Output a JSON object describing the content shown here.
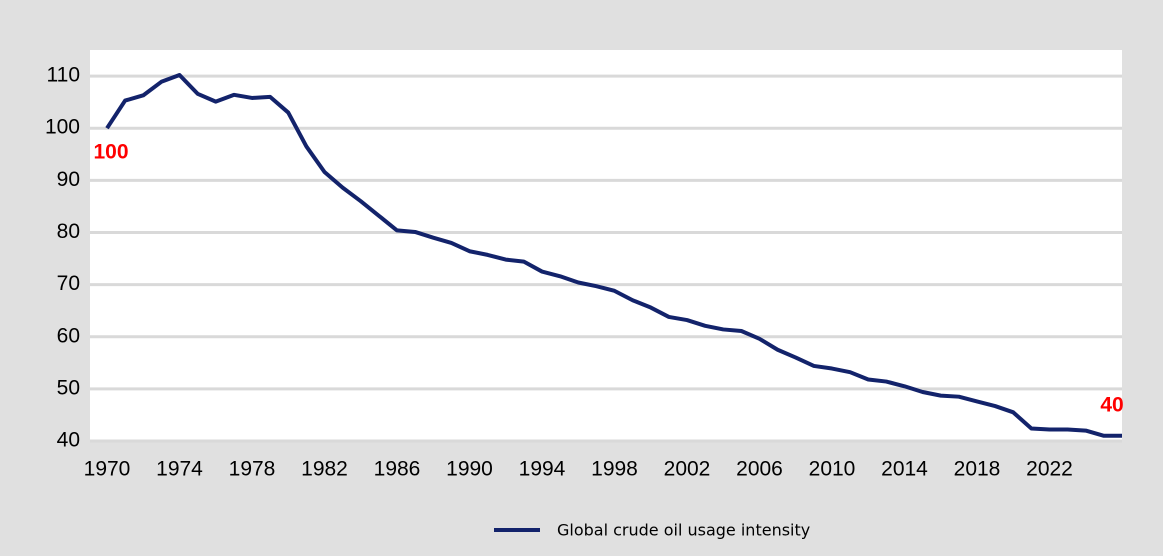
{
  "chart_data": {
    "type": "line",
    "x": [
      1970,
      1971,
      1972,
      1973,
      1974,
      1975,
      1976,
      1977,
      1978,
      1979,
      1980,
      1981,
      1982,
      1983,
      1984,
      1985,
      1986,
      1987,
      1988,
      1989,
      1990,
      1991,
      1992,
      1993,
      1994,
      1995,
      1996,
      1997,
      1998,
      1999,
      2000,
      2001,
      2002,
      2003,
      2004,
      2005,
      2006,
      2007,
      2008,
      2009,
      2010,
      2011,
      2012,
      2013,
      2014,
      2015,
      2016,
      2017,
      2018,
      2019,
      2020,
      2021,
      2022,
      2023,
      2024,
      2025,
      2026
    ],
    "series": [
      {
        "name": "Global crude oil usage intensity",
        "color": "#13236b",
        "values": [
          100,
          105.3,
          106.3,
          108.9,
          110.2,
          106.6,
          105.1,
          106.4,
          105.8,
          106,
          103,
          96.5,
          91.6,
          88.6,
          86,
          83.2,
          80.4,
          80.1,
          79,
          78,
          76.4,
          75.7,
          74.8,
          74.4,
          72.5,
          71.6,
          70.4,
          69.7,
          68.8,
          67,
          65.6,
          63.8,
          63.2,
          62.1,
          61.4,
          61.1,
          59.6,
          57.5,
          56,
          54.4,
          53.9,
          53.2,
          51.8,
          51.4,
          50.5,
          49.4,
          48.7,
          48.5,
          47.6,
          46.7,
          45.5,
          42.4,
          42.2,
          42.2,
          42,
          41,
          41
        ]
      }
    ],
    "annotations": [
      "100",
      "40"
    ],
    "xlim": [
      1970,
      2026
    ],
    "xticks": [
      1970,
      1974,
      1978,
      1982,
      1986,
      1990,
      1994,
      1998,
      2002,
      2006,
      2010,
      2014,
      2018,
      2022
    ],
    "ylim": [
      40,
      115
    ],
    "yticks": [
      40,
      50,
      60,
      70,
      80,
      90,
      100,
      110
    ],
    "grid": true
  }
}
